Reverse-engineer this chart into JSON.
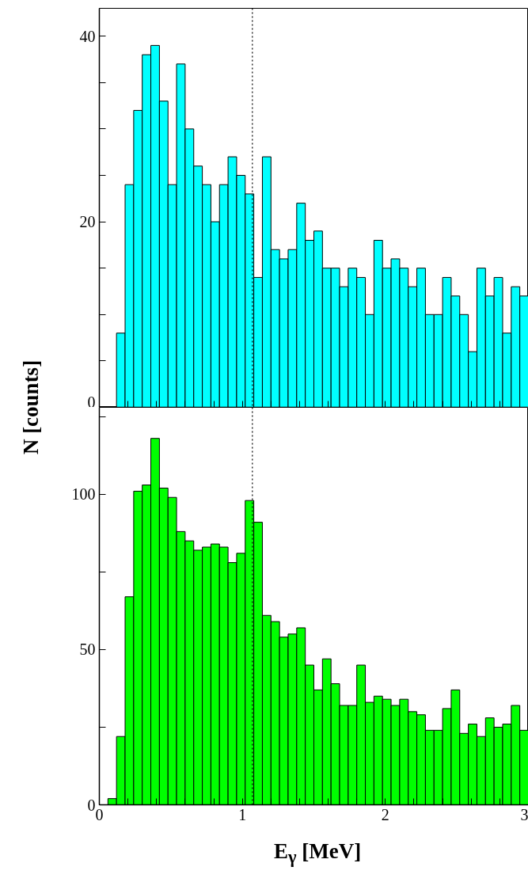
{
  "chart_data": [
    {
      "type": "histogram",
      "ylabel": "N [counts]",
      "color": "#00ffff",
      "bins": [
        0.12,
        0.18,
        0.24,
        0.3,
        0.36,
        0.42,
        0.48,
        0.54,
        0.6,
        0.66,
        0.72,
        0.78,
        0.84,
        0.9,
        0.96,
        1.02,
        1.08,
        1.14,
        1.2,
        1.26,
        1.32,
        1.38,
        1.44,
        1.5,
        1.56,
        1.62,
        1.68,
        1.74,
        1.8,
        1.86,
        1.92,
        1.98,
        2.04,
        2.1,
        2.16,
        2.22,
        2.28,
        2.34,
        2.4,
        2.46,
        2.52,
        2.58,
        2.64,
        2.7,
        2.76,
        2.82,
        2.88,
        2.94,
        3.0
      ],
      "values": [
        8,
        24,
        32,
        38,
        39,
        33,
        24,
        37,
        30,
        26,
        24,
        20,
        24,
        27,
        25,
        23,
        14,
        27,
        17,
        16,
        17,
        22,
        18,
        19,
        15,
        15,
        13,
        15,
        14,
        10,
        18,
        15,
        16,
        15,
        13,
        15,
        10,
        10,
        14,
        12,
        10,
        6,
        15,
        12,
        14,
        8,
        13,
        12
      ],
      "xlim": [
        0,
        3
      ],
      "xticks": [
        {
          "value": 0,
          "label": null
        },
        {
          "value": 0.2,
          "label": null
        },
        {
          "value": 0.4,
          "label": null
        },
        {
          "value": 0.6,
          "label": null
        },
        {
          "value": 0.8,
          "label": null
        },
        {
          "value": 1,
          "label": null
        },
        {
          "value": 1.2,
          "label": null
        },
        {
          "value": 1.4,
          "label": null
        },
        {
          "value": 1.6,
          "label": null
        },
        {
          "value": 1.8,
          "label": null
        },
        {
          "value": 2,
          "label": null
        },
        {
          "value": 2.2,
          "label": null
        },
        {
          "value": 2.4,
          "label": null
        },
        {
          "value": 2.6,
          "label": null
        },
        {
          "value": 2.8,
          "label": null
        },
        {
          "value": 3,
          "label": null
        }
      ],
      "ylim": [
        0,
        43
      ],
      "yticks": [
        0,
        {
          "value": 5,
          "label": null
        },
        {
          "value": 10,
          "label": null
        },
        {
          "value": 15,
          "label": null
        },
        20,
        {
          "value": 25,
          "label": null
        },
        {
          "value": 30,
          "label": null
        },
        {
          "value": 35,
          "label": null
        },
        40
      ],
      "tick_labels": "y",
      "ref_lines": [
        {
          "axis": "x",
          "value": 1.07,
          "color": "#000000",
          "line_style": "dotted"
        }
      ]
    },
    {
      "type": "histogram",
      "xlabel": "E$_{γ}$ [MeV]",
      "color": "#00ff00",
      "bins": [
        0.06,
        0.12,
        0.18,
        0.24,
        0.3,
        0.36,
        0.42,
        0.48,
        0.54,
        0.6,
        0.66,
        0.72,
        0.78,
        0.84,
        0.9,
        0.96,
        1.02,
        1.08,
        1.14,
        1.2,
        1.26,
        1.32,
        1.38,
        1.44,
        1.5,
        1.56,
        1.62,
        1.68,
        1.74,
        1.8,
        1.86,
        1.92,
        1.98,
        2.04,
        2.1,
        2.16,
        2.22,
        2.28,
        2.34,
        2.4,
        2.46,
        2.52,
        2.58,
        2.64,
        2.7,
        2.76,
        2.82,
        2.88,
        2.94,
        3.0
      ],
      "values": [
        2,
        22,
        67,
        101,
        103,
        118,
        102,
        99,
        88,
        85,
        82,
        83,
        84,
        83,
        78,
        81,
        98,
        91,
        61,
        59,
        54,
        55,
        57,
        45,
        37,
        47,
        39,
        32,
        32,
        45,
        33,
        35,
        34,
        32,
        34,
        30,
        29,
        24,
        24,
        31,
        37,
        23,
        26,
        22,
        28,
        25,
        26,
        32,
        24
      ],
      "xlim": [
        0,
        3
      ],
      "xticks": [
        0,
        {
          "value": 0.2,
          "label": null
        },
        {
          "value": 0.4,
          "label": null
        },
        {
          "value": 0.6,
          "label": null
        },
        {
          "value": 0.8,
          "label": null
        },
        1,
        {
          "value": 1.2,
          "label": null
        },
        {
          "value": 1.4,
          "label": null
        },
        {
          "value": 1.6,
          "label": null
        },
        {
          "value": 1.8,
          "label": null
        },
        2,
        {
          "value": 2.2,
          "label": null
        },
        {
          "value": 2.4,
          "label": null
        },
        {
          "value": 2.6,
          "label": null
        },
        {
          "value": 2.8,
          "label": null
        },
        3
      ],
      "ylim": [
        0,
        128
      ],
      "yticks": [
        0,
        {
          "value": 25,
          "label": null
        },
        50,
        {
          "value": 75,
          "label": null
        },
        100,
        {
          "value": 125,
          "label": null
        }
      ],
      "ref_lines": [
        {
          "axis": "x",
          "value": 1.07,
          "color": "#000000",
          "line_style": "dotted"
        }
      ]
    }
  ]
}
